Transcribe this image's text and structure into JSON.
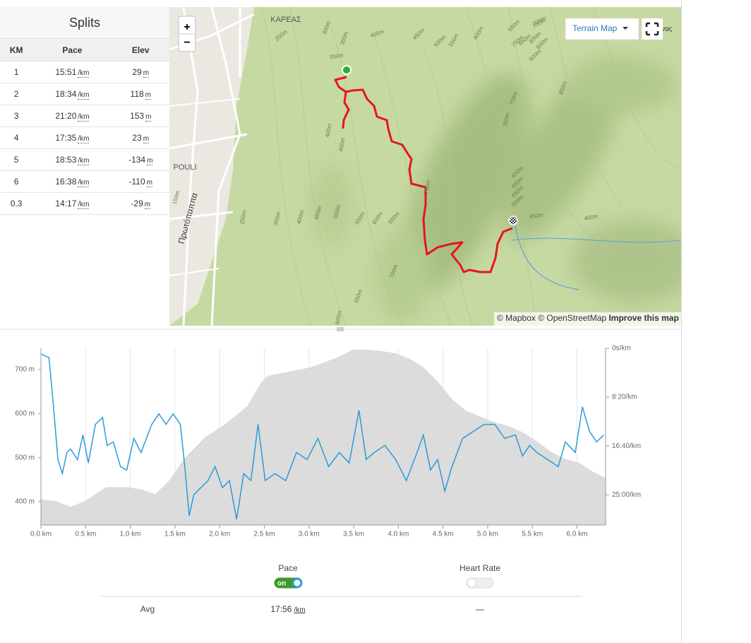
{
  "splits": {
    "title": "Splits",
    "headers": [
      "KM",
      "Pace",
      "Elev"
    ],
    "rows": [
      {
        "km": "1",
        "pace": "15:51",
        "pace_unit": "/km",
        "elev": 29,
        "elev_unit": "m"
      },
      {
        "km": "2",
        "pace": "18:34",
        "pace_unit": "/km",
        "elev": 118,
        "elev_unit": "m"
      },
      {
        "km": "3",
        "pace": "21:20",
        "pace_unit": "/km",
        "elev": 153,
        "elev_unit": "m"
      },
      {
        "km": "4",
        "pace": "17:35",
        "pace_unit": "/km",
        "elev": 23,
        "elev_unit": "m"
      },
      {
        "km": "5",
        "pace": "18:53",
        "pace_unit": "/km",
        "elev": -134,
        "elev_unit": "m"
      },
      {
        "km": "6",
        "pace": "16:38",
        "pace_unit": "/km",
        "elev": -110,
        "elev_unit": "m"
      },
      {
        "km": "0.3",
        "pace": "14:17",
        "pace_unit": "/km",
        "elev": -29,
        "elev_unit": "m"
      }
    ]
  },
  "map": {
    "zoom_in": "+",
    "zoom_out": "−",
    "layer_button": "Terrain Map",
    "attribution": "© Mapbox © OpenStreetMap",
    "improve": "Improve this map",
    "labels": [
      "ΚΑΡΕΑΣ",
      "POULI",
      "Πρωτόπαππα",
      "ονας",
      "250m",
      "300m",
      "350m",
      "350m",
      "400m",
      "450m",
      "500m",
      "550m",
      "600m",
      "650m",
      "700m",
      "750m",
      "800m",
      "600m",
      "650m",
      "700m",
      "750m",
      "800m",
      "850m",
      "700m",
      "650m",
      "600m",
      "550m",
      "500m",
      "450m",
      "400m",
      "400m",
      "450m",
      "750m",
      "150m",
      "250m",
      "350m",
      "400m",
      "450m",
      "500m",
      "550m",
      "600m",
      "650m",
      "700m",
      "650m",
      "600m"
    ]
  },
  "chart": {
    "type": "line",
    "xlim": [
      0,
      6.32
    ],
    "ylim": [
      347,
      748
    ],
    "y2lim": [
      0,
      1810
    ],
    "y2_reversed": true,
    "grid": true,
    "xticks": [
      {
        "value": 0,
        "label": "0.0 km"
      },
      {
        "value": 0.5,
        "label": "0.5 km"
      },
      {
        "value": 1,
        "label": "1.0 km"
      },
      {
        "value": 1.5,
        "label": "1.5 km"
      },
      {
        "value": 2,
        "label": "2.0 km"
      },
      {
        "value": 2.5,
        "label": "2.5 km"
      },
      {
        "value": 3,
        "label": "3.0 km"
      },
      {
        "value": 3.5,
        "label": "3.5 km"
      },
      {
        "value": 4,
        "label": "4.0 km"
      },
      {
        "value": 4.5,
        "label": "4.5 km"
      },
      {
        "value": 5,
        "label": "5.0 km"
      },
      {
        "value": 5.5,
        "label": "5.5 km"
      },
      {
        "value": 6,
        "label": "6.0 km"
      }
    ],
    "yticks": [
      {
        "value": 400,
        "label": "400 m"
      },
      {
        "value": 500,
        "label": "500 m"
      },
      {
        "value": 600,
        "label": "600 m"
      },
      {
        "value": 700,
        "label": "700 m"
      }
    ],
    "y2ticks": [
      {
        "value": 0,
        "label": "0s/km"
      },
      {
        "value": 500,
        "label": "8:20/km"
      },
      {
        "value": 1000,
        "label": "16:40/km"
      },
      {
        "value": 1500,
        "label": "25:00/km"
      }
    ],
    "series": [
      {
        "type": "area",
        "color": "#dcdcdc",
        "x": [
          0,
          0.17,
          0.33,
          0.49,
          0.73,
          0.96,
          1.12,
          1.28,
          1.44,
          1.6,
          1.83,
          2.07,
          2.31,
          2.47,
          2.55,
          2.7,
          3.02,
          3.34,
          3.49,
          3.65,
          3.81,
          3.97,
          4.13,
          4.28,
          4.44,
          4.6,
          4.76,
          4.92,
          5.08,
          5.23,
          5.39,
          5.55,
          5.71,
          5.87,
          6.02,
          6.18,
          6.32
        ],
        "values": [
          405,
          401,
          388,
          401,
          433,
          433,
          428,
          417,
          449,
          497,
          545,
          577,
          617,
          673,
          686,
          692,
          705,
          729,
          745,
          745,
          742,
          737,
          724,
          705,
          673,
          633,
          606,
          593,
          580,
          572,
          558,
          537,
          513,
          497,
          489,
          468,
          454
        ]
      },
      {
        "type": "line",
        "color": "#2d9ad6",
        "axis": "y2",
        "x": [
          0,
          0.09,
          0.13,
          0.19,
          0.24,
          0.29,
          0.33,
          0.41,
          0.47,
          0.53,
          0.61,
          0.69,
          0.74,
          0.81,
          0.89,
          0.96,
          1.04,
          1.12,
          1.24,
          1.32,
          1.4,
          1.48,
          1.56,
          1.61,
          1.66,
          1.71,
          1.79,
          1.87,
          1.95,
          2.03,
          2.11,
          2.19,
          2.27,
          2.35,
          2.43,
          2.51,
          2.62,
          2.74,
          2.86,
          2.98,
          3.1,
          3.22,
          3.34,
          3.45,
          3.56,
          3.64,
          3.73,
          3.85,
          3.97,
          4.09,
          4.21,
          4.28,
          4.36,
          4.44,
          4.52,
          4.6,
          4.72,
          4.84,
          4.96,
          5.08,
          5.19,
          5.31,
          5.39,
          5.47,
          5.55,
          5.67,
          5.79,
          5.87,
          5.98,
          6.06,
          6.14,
          6.22,
          6.3
        ],
        "values": [
          58,
          94,
          490,
          1139,
          1283,
          1067,
          1031,
          1139,
          887,
          1175,
          779,
          707,
          995,
          959,
          1211,
          1247,
          923,
          1067,
          779,
          671,
          779,
          671,
          779,
          1211,
          1716,
          1500,
          1428,
          1355,
          1211,
          1428,
          1355,
          1752,
          1283,
          1355,
          779,
          1355,
          1283,
          1355,
          1067,
          1139,
          923,
          1211,
          1067,
          1175,
          635,
          1139,
          1067,
          995,
          1139,
          1355,
          1067,
          887,
          1247,
          1139,
          1463,
          1211,
          923,
          851,
          779,
          779,
          923,
          887,
          1103,
          995,
          1067,
          1139,
          1211,
          959,
          1067,
          599,
          851,
          959,
          887
        ]
      }
    ]
  },
  "toggles": [
    {
      "label": "Pace",
      "state": "on"
    },
    {
      "label": "Heart Rate"
    }
  ],
  "summary": {
    "label": "Avg",
    "pace": "17:56",
    "pace_unit": "/km",
    "heart_rate": "—"
  }
}
